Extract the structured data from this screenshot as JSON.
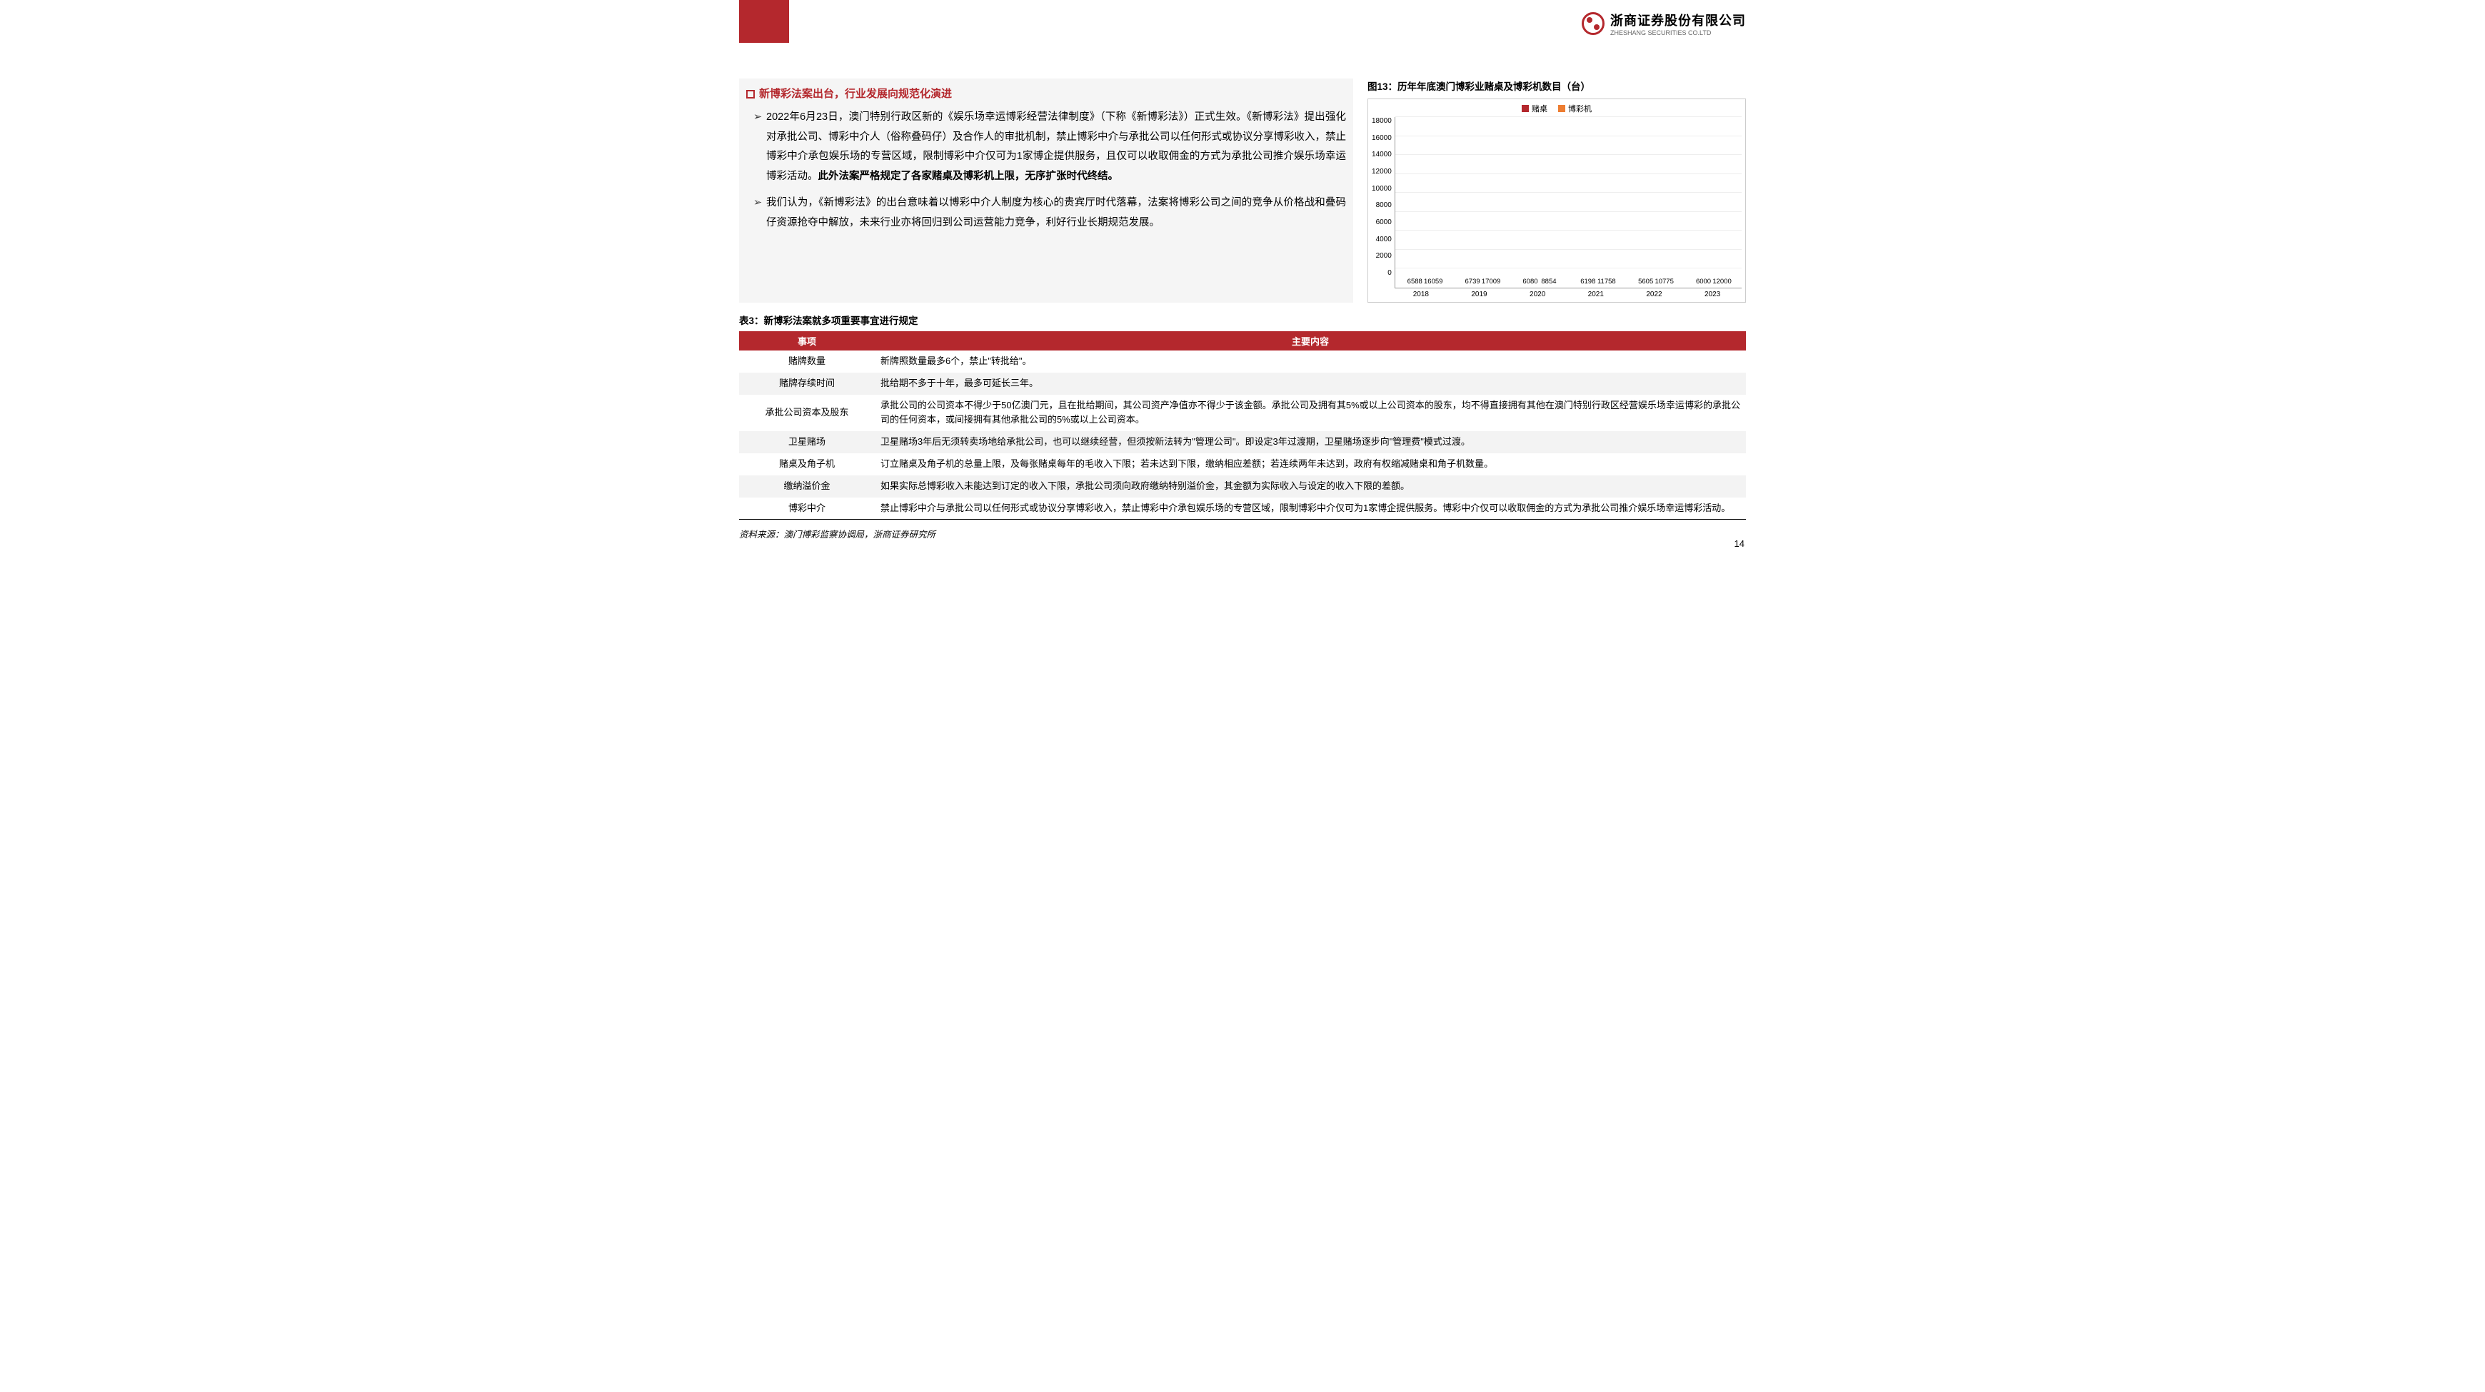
{
  "company": {
    "cn": "浙商证券股份有限公司",
    "en": "ZHESHANG SECURITIES CO.LTD"
  },
  "section_title": "新博彩法案出台，行业发展向规范化演进",
  "para1_a": "2022年6月23日，澳门特别行政区新的《娱乐场幸运博彩经营法律制度》（下称《新博彩法》）正式生效。《新博彩法》提出强化对承批公司、博彩中介人（俗称叠码仔）及合作人的审批机制，禁止博彩中介与承批公司以任何形式或协议分享博彩收入，禁止博彩中介承包娱乐场的专营区域，限制博彩中介仅可为1家博企提供服务，且仅可以收取佣金的方式为承批公司推介娱乐场幸运博彩活动。",
  "para1_b": "此外法案严格规定了各家赌桌及博彩机上限，无序扩张时代终结。",
  "para2": "我们认为，《新博彩法》的出台意味着以博彩中介人制度为核心的贵宾厅时代落幕，法案将博彩公司之间的竞争从价格战和叠码仔资源抢夺中解放，未来行业亦将回归到公司运营能力竞争，利好行业长期规范发展。",
  "chart": {
    "title": "图13：历年年底澳门博彩业赌桌及博彩机数目（台）",
    "legend": {
      "s1": "赌桌",
      "s2": "博彩机"
    },
    "colors": {
      "s1": "#b4282d",
      "s2": "#ed7d31"
    },
    "ymax": 18000,
    "ystep": 2000,
    "years": [
      "2018",
      "2019",
      "2020",
      "2021",
      "2022",
      "2023"
    ],
    "s1": [
      6588,
      6739,
      6080,
      6198,
      5605,
      6000
    ],
    "s2": [
      16059,
      17009,
      8854,
      11758,
      10775,
      12000
    ]
  },
  "table": {
    "title": "表3：新博彩法案就多项重要事宜进行规定",
    "headers": [
      "事项",
      "主要内容"
    ],
    "rows": [
      {
        "item": "赌牌数量",
        "content": "新牌照数量最多6个，禁止\"转批给\"。"
      },
      {
        "item": "赌牌存续时间",
        "content": "批给期不多于十年，最多可延长三年。"
      },
      {
        "item": "承批公司资本及股东",
        "content": "承批公司的公司资本不得少于50亿澳门元，且在批给期间，其公司资产净值亦不得少于该金额。承批公司及拥有其5%或以上公司资本的股东，均不得直接拥有其他在澳门特别行政区经营娱乐场幸运博彩的承批公司的任何资本，或间接拥有其他承批公司的5%或以上公司资本。"
      },
      {
        "item": "卫星赌场",
        "content": "卫星赌场3年后无须转卖场地给承批公司，也可以继续经营，但须按新法转为\"管理公司\"。即设定3年过渡期，卫星赌场逐步向\"管理费\"模式过渡。"
      },
      {
        "item": "赌桌及角子机",
        "content": "订立赌桌及角子机的总量上限，及每张赌桌每年的毛收入下限；若未达到下限，缴纳相应差额；若连续两年未达到，政府有权缩减赌桌和角子机数量。"
      },
      {
        "item": "缴纳溢价金",
        "content": "如果实际总博彩收入未能达到订定的收入下限，承批公司须向政府缴纳特别溢价金，其金额为实际收入与设定的收入下限的差额。"
      },
      {
        "item": "博彩中介",
        "content": "禁止博彩中介与承批公司以任何形式或协议分享博彩收入，禁止博彩中介承包娱乐场的专营区域，限制博彩中介仅可为1家博企提供服务。博彩中介仅可以收取佣金的方式为承批公司推介娱乐场幸运博彩活动。"
      }
    ]
  },
  "source": "资料来源：澳门博彩监察协调局，浙商证券研究所",
  "page": "14"
}
